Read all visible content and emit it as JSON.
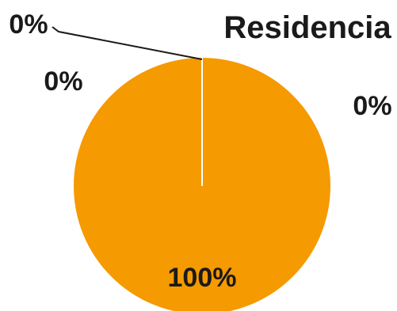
{
  "chart_data": {
    "type": "pie",
    "title": "Residencia",
    "slices": [
      {
        "value": 0,
        "label": "0%"
      },
      {
        "value": 0,
        "label": "0%"
      },
      {
        "value": 0,
        "label": "0%"
      },
      {
        "value": 100,
        "label": "100%"
      }
    ],
    "colors": {
      "main_slice": "#f59a00",
      "slice_border": "#ffffff",
      "leader_line": "#1a1a1a"
    }
  }
}
